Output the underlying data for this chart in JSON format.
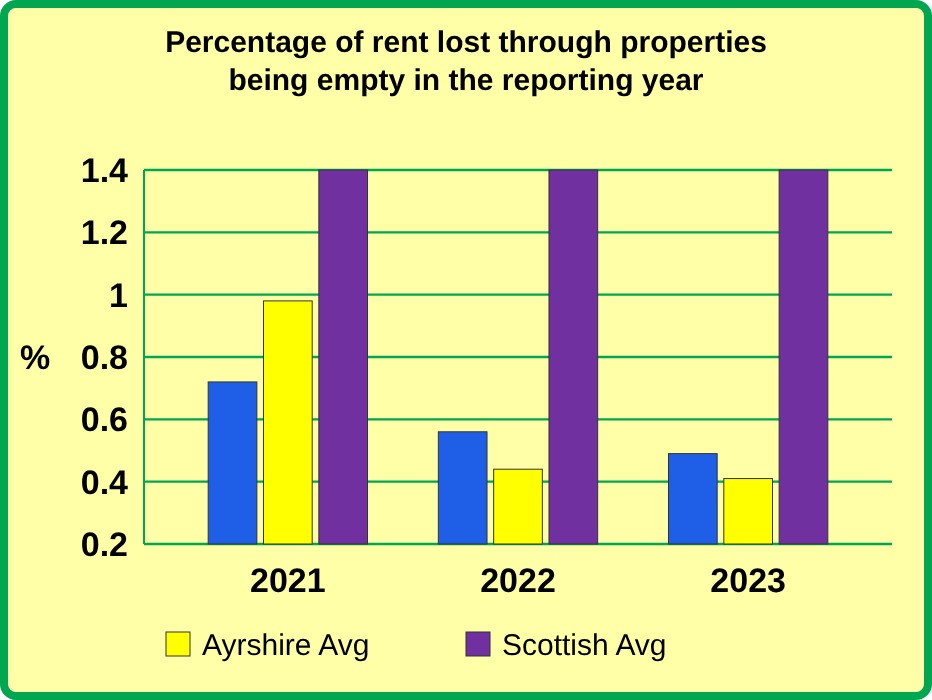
{
  "chart_data": {
    "type": "bar",
    "title": "Percentage of rent lost through properties being empty in the reporting year",
    "ylabel": "%",
    "categories": [
      "2021",
      "2022",
      "2023"
    ],
    "series": [
      {
        "color": "#1f5fe8",
        "values": [
          0.72,
          0.56,
          0.49
        ]
      },
      {
        "name": "Ayrshire Avg",
        "color": "#ffff00",
        "values": [
          0.98,
          0.44,
          0.41
        ]
      },
      {
        "name": "Scottish Avg",
        "color": "#7030a0",
        "values": [
          1.4,
          1.4,
          1.4
        ]
      }
    ],
    "ylim": [
      0.2,
      1.4
    ],
    "yticks": [
      0.2,
      0.4,
      0.6,
      0.8,
      1,
      1.2,
      1.4
    ],
    "grid": "y",
    "legend": "bottom"
  }
}
